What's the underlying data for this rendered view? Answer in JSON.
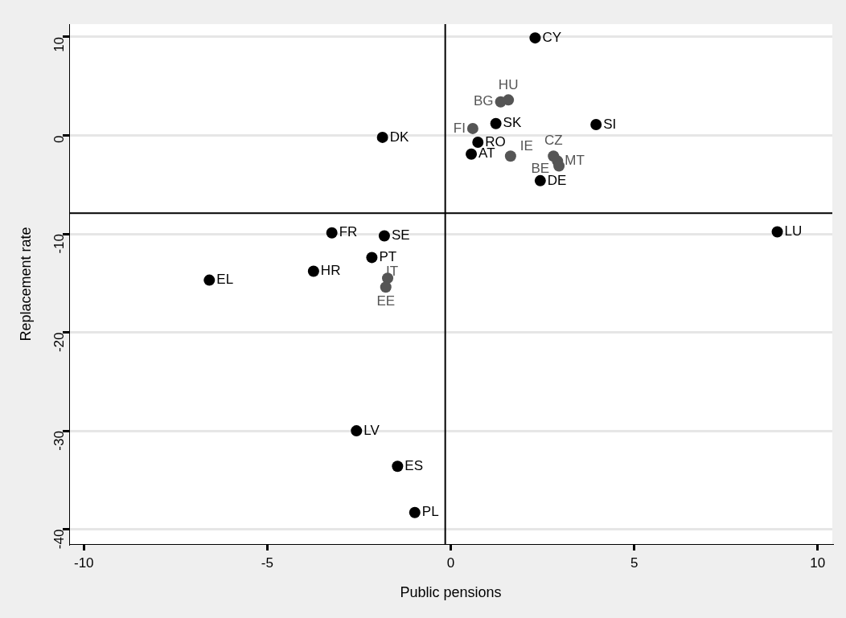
{
  "chart_data": {
    "type": "scatter",
    "xlabel": "Public pensions",
    "ylabel": "Replacement rate",
    "series": [
      {
        "color": "#000000",
        "x": [
          2.3,
          1.23,
          3.96,
          -1.86,
          0.74,
          0.56,
          2.44,
          -3.24,
          -1.81,
          8.9,
          -2.15,
          -3.74,
          -6.58,
          -2.57,
          -1.45,
          -0.98
        ],
        "values": [
          9.9,
          1.2,
          1.1,
          -0.2,
          -0.7,
          -1.9,
          -4.6,
          -9.9,
          -10.2,
          -9.8,
          -12.4,
          -13.8,
          -14.7,
          -30.0,
          -33.6,
          -38.3
        ]
      },
      {
        "color": "#555555",
        "x": [
          1.57,
          1.36,
          0.6,
          1.63,
          2.8,
          2.91,
          2.95,
          -1.72,
          -1.77
        ],
        "values": [
          3.6,
          3.4,
          0.7,
          -2.1,
          -2.1,
          -2.6,
          -3.1,
          -14.5,
          -15.4
        ]
      }
    ],
    "annotations": [
      {
        "text": "CY",
        "x": 2.3,
        "y": 9.9
      },
      {
        "text": "SK",
        "x": 1.23,
        "y": 1.2
      },
      {
        "text": "SI",
        "x": 3.96,
        "y": 1.1
      },
      {
        "text": "DK",
        "x": -1.86,
        "y": -0.2
      },
      {
        "text": "RO",
        "x": 0.74,
        "y": -0.7
      },
      {
        "text": "AT",
        "x": 0.56,
        "y": -1.9
      },
      {
        "text": "DE",
        "x": 2.44,
        "y": -4.6
      },
      {
        "text": "FR",
        "x": -3.24,
        "y": -9.9
      },
      {
        "text": "SE",
        "x": -1.81,
        "y": -10.2
      },
      {
        "text": "LU",
        "x": 8.9,
        "y": -9.8
      },
      {
        "text": "PT",
        "x": -2.15,
        "y": -12.4
      },
      {
        "text": "HR",
        "x": -3.74,
        "y": -13.8
      },
      {
        "text": "EL",
        "x": -6.58,
        "y": -14.7
      },
      {
        "text": "LV",
        "x": -2.57,
        "y": -30.0
      },
      {
        "text": "ES",
        "x": -1.45,
        "y": -33.6
      },
      {
        "text": "PL",
        "x": -0.98,
        "y": -38.3
      },
      {
        "text": "HU",
        "x": 1.57,
        "y": 3.6
      },
      {
        "text": "BG",
        "x": 1.36,
        "y": 3.4
      },
      {
        "text": "FI",
        "x": 0.6,
        "y": 0.7
      },
      {
        "text": "IE",
        "x": 1.63,
        "y": -2.1
      },
      {
        "text": "CZ",
        "x": 2.8,
        "y": -2.1
      },
      {
        "text": "MT",
        "x": 2.91,
        "y": -2.6
      },
      {
        "text": "BE",
        "x": 2.95,
        "y": -3.1
      },
      {
        "text": "IT",
        "x": -1.72,
        "y": -14.5
      },
      {
        "text": "EE",
        "x": -1.77,
        "y": -15.4
      }
    ],
    "ref_lines": [
      {
        "axis": "x",
        "value": -0.15,
        "color": "#000000"
      },
      {
        "axis": "y",
        "value": -7.9,
        "color": "#000000"
      }
    ],
    "xlim": [
      -10.4,
      10.4
    ],
    "xticks": [
      -10,
      -5,
      0,
      5,
      10
    ],
    "ylim": [
      -41.5,
      11.3
    ],
    "yticks": [
      -40,
      -30,
      -20,
      -10,
      0,
      10
    ],
    "grid": "y",
    "legend": false,
    "marker": "circle"
  }
}
